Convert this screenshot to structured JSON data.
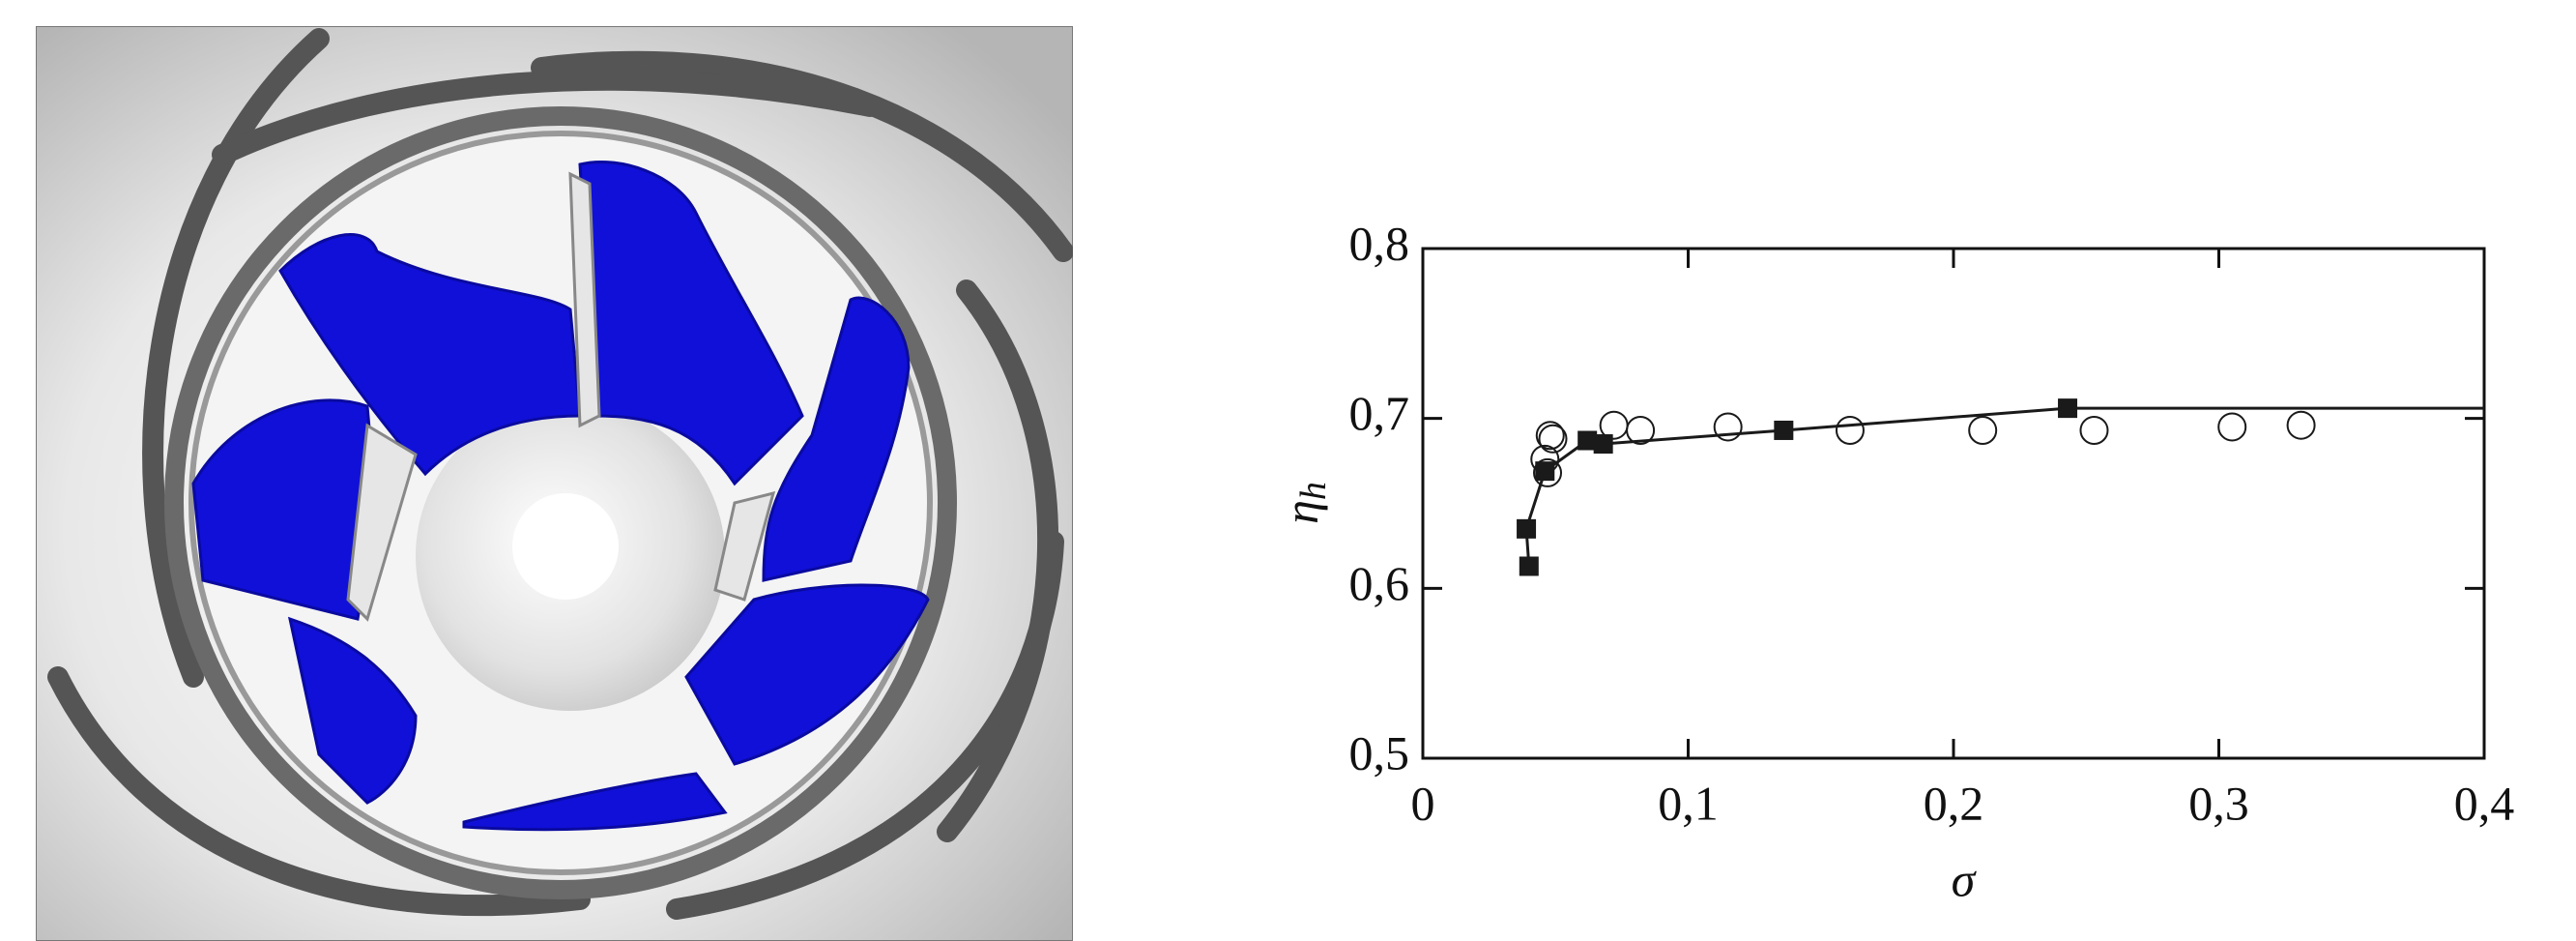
{
  "chart_data": {
    "type": "scatter",
    "x_label": "σ",
    "y_label": "η",
    "y_label_sub": "h",
    "xlim": [
      0,
      0.4
    ],
    "ylim": [
      0.5,
      0.8
    ],
    "xticks": [
      0,
      {
        "value": 0.1,
        "label": "0,1"
      },
      {
        "value": 0.2,
        "label": "0,2"
      },
      {
        "value": 0.3,
        "label": "0,3"
      },
      {
        "value": 0.4,
        "label": "0,4"
      }
    ],
    "yticks": [
      {
        "value": 0.5,
        "label": "0,5"
      },
      {
        "value": 0.6,
        "label": "0,6"
      },
      {
        "value": 0.7,
        "label": "0,7"
      },
      {
        "value": 0.8,
        "label": "0,8"
      }
    ],
    "series": [
      {
        "marker": "square",
        "line": true,
        "color": "#1a1a1a",
        "x": [
          0.04,
          0.039,
          0.046,
          0.062,
          0.068,
          0.136,
          0.243
        ],
        "values": [
          0.613,
          0.635,
          0.669,
          0.687,
          0.685,
          0.693,
          0.706
        ]
      },
      {
        "marker": "none",
        "line": true,
        "color": "#1a1a1a",
        "x": [
          0.243,
          0.4
        ],
        "values": [
          0.706,
          0.706
        ]
      },
      {
        "marker": "circle",
        "line": false,
        "color": "#1a1a1a",
        "x": [
          0.046,
          0.047,
          0.048,
          0.049,
          0.072,
          0.082,
          0.115,
          0.161,
          0.211,
          0.253,
          0.305,
          0.331
        ],
        "values": [
          0.676,
          0.668,
          0.69,
          0.688,
          0.696,
          0.693,
          0.695,
          0.693,
          0.693,
          0.693,
          0.695,
          0.696
        ]
      }
    ]
  }
}
